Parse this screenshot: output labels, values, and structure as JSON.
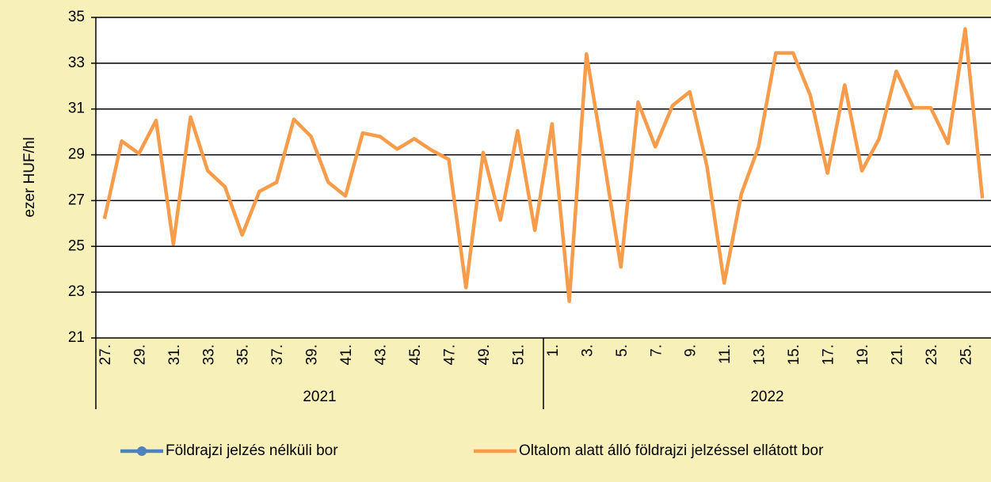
{
  "chart_data": {
    "type": "line",
    "y_label": "ezer HUF/hl",
    "categories": [
      "27.",
      null,
      "29.",
      null,
      "31.",
      null,
      "33.",
      null,
      "35.",
      null,
      "37.",
      null,
      "39.",
      null,
      "41.",
      null,
      "43.",
      null,
      "45.",
      null,
      "47.",
      null,
      "49.",
      null,
      "51.",
      null,
      "1.",
      null,
      "3.",
      null,
      "5.",
      null,
      "7.",
      null,
      "9.",
      null,
      "11.",
      null,
      "13.",
      null,
      "15.",
      null,
      "17.",
      null,
      "19.",
      null,
      "21.",
      null,
      "23.",
      null,
      "25.",
      null
    ],
    "x_groups": [
      "2021",
      "2022"
    ],
    "series": [
      {
        "name": "Földrajzi jelzés nélküli bor",
        "color": "#4f81bd",
        "marker": true,
        "values": [
          null,
          null,
          null,
          null,
          null,
          null,
          null,
          null,
          null,
          null,
          null,
          null,
          null,
          null,
          null,
          null,
          null,
          null,
          null,
          null,
          null,
          null,
          null,
          null,
          null,
          null,
          null,
          null,
          null,
          null,
          null,
          null,
          null,
          null,
          null,
          null,
          null,
          null,
          null,
          null,
          null,
          null,
          null,
          null,
          null,
          null,
          null,
          null,
          null,
          null,
          null,
          null
        ]
      },
      {
        "name": "Oltalom alatt álló földrajzi jelzéssel ellátott bor",
        "color": "#f79c4a",
        "marker": false,
        "values": [
          26.2,
          29.6,
          29.05,
          30.5,
          25.1,
          30.65,
          28.3,
          27.6,
          25.5,
          27.4,
          27.8,
          30.55,
          29.8,
          27.8,
          27.2,
          29.95,
          29.8,
          29.25,
          29.7,
          29.2,
          28.8,
          23.2,
          29.1,
          26.15,
          30.05,
          25.7,
          30.35,
          22.6,
          33.4,
          28.85,
          24.1,
          31.3,
          29.35,
          31.15,
          31.75,
          28.5,
          23.4,
          27.3,
          29.35,
          33.45,
          33.45,
          31.6,
          28.2,
          32.05,
          28.3,
          29.7,
          32.65,
          31.05,
          31.05,
          29.5,
          34.5,
          27.1
        ]
      }
    ],
    "ylim": [
      21,
      35
    ],
    "yticks": [
      21,
      23,
      25,
      27,
      29,
      31,
      33,
      35
    ],
    "grid": true
  }
}
